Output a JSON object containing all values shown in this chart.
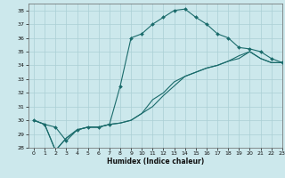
{
  "xlabel": "Humidex (Indice chaleur)",
  "ylabel": "",
  "bg_color": "#cce8ec",
  "grid_color": "#aacfd4",
  "line_color": "#1a6b6b",
  "xlim": [
    -0.5,
    23
  ],
  "ylim": [
    28,
    38.5
  ],
  "xticks": [
    0,
    1,
    2,
    3,
    4,
    5,
    6,
    7,
    8,
    9,
    10,
    11,
    12,
    13,
    14,
    15,
    16,
    17,
    18,
    19,
    20,
    21,
    22,
    23
  ],
  "yticks": [
    28,
    29,
    30,
    31,
    32,
    33,
    34,
    35,
    36,
    37,
    38
  ],
  "line1_x": [
    0,
    1,
    2,
    3,
    4,
    5,
    6,
    7,
    8,
    9,
    10,
    11,
    12,
    13,
    14,
    15,
    16,
    17,
    18,
    19,
    20,
    21,
    22,
    23
  ],
  "line1_y": [
    30.0,
    29.7,
    29.5,
    28.5,
    29.3,
    29.5,
    29.5,
    29.7,
    32.5,
    36.0,
    36.3,
    37.0,
    37.5,
    38.0,
    38.1,
    37.5,
    37.0,
    36.3,
    36.0,
    35.3,
    35.2,
    35.0,
    34.5,
    34.2
  ],
  "line2_x": [
    0,
    1,
    2,
    3,
    4,
    5,
    6,
    7,
    8,
    9,
    10,
    11,
    12,
    13,
    14,
    15,
    16,
    17,
    18,
    19,
    20,
    21,
    22,
    23
  ],
  "line2_y": [
    30.0,
    29.7,
    27.8,
    28.7,
    29.3,
    29.5,
    29.5,
    29.7,
    29.8,
    30.0,
    30.5,
    31.0,
    31.8,
    32.5,
    33.2,
    33.5,
    33.8,
    34.0,
    34.3,
    34.7,
    35.0,
    34.5,
    34.2,
    34.2
  ],
  "line3_x": [
    0,
    1,
    2,
    3,
    4,
    5,
    6,
    7,
    8,
    9,
    10,
    11,
    12,
    13,
    14,
    15,
    16,
    17,
    18,
    19,
    20,
    21,
    22,
    23
  ],
  "line3_y": [
    30.0,
    29.7,
    27.8,
    28.7,
    29.3,
    29.5,
    29.5,
    29.7,
    29.8,
    30.0,
    30.5,
    31.5,
    32.0,
    32.8,
    33.2,
    33.5,
    33.8,
    34.0,
    34.3,
    34.5,
    35.0,
    34.5,
    34.2,
    34.2
  ],
  "xlabel_fontsize": 5.5,
  "tick_fontsize": 4.5,
  "marker_size": 2.0,
  "line_width": 0.8
}
